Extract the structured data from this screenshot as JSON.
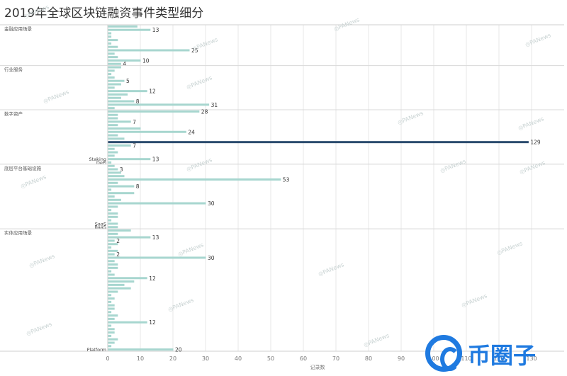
{
  "chart_data": {
    "type": "bar",
    "orientation": "horizontal",
    "title": "2019年全球区块链融资事件类型细分",
    "xlabel": "记录数",
    "xlim": [
      0,
      140
    ],
    "xticks": [
      0,
      10,
      20,
      30,
      40,
      50,
      60,
      70,
      80,
      90,
      100,
      110,
      120,
      130
    ],
    "grid": true,
    "bar_color": "#a7d6cf",
    "highlight_color": "#2b4b6e",
    "groups": [
      {
        "name": "金融应用场景",
        "categories": [
          "",
          "",
          "",
          "",
          "",
          "",
          "",
          "",
          "",
          "",
          "",
          ""
        ],
        "values": [
          9,
          13,
          1,
          1,
          3,
          1,
          3,
          25,
          2,
          3,
          10,
          4
        ]
      },
      {
        "name": "行业服务",
        "categories": [
          "",
          "",
          "",
          "",
          "",
          "",
          "",
          "",
          "",
          "",
          "",
          "",
          ""
        ],
        "values": [
          4,
          2,
          1,
          2,
          5,
          4,
          2,
          12,
          6,
          4,
          8,
          31,
          2
        ]
      },
      {
        "name": "数字资产",
        "categories": [
          "",
          "",
          "",
          "",
          "",
          "",
          "",
          "",
          "",
          "",
          "",
          "",
          "",
          "",
          "Staking",
          "DeFi"
        ],
        "values": [
          28,
          3,
          3,
          7,
          3,
          10,
          24,
          3,
          5,
          129,
          7,
          2,
          3,
          2,
          13,
          1
        ]
      },
      {
        "name": "底层平台基础设施",
        "categories": [
          "",
          "",
          "",
          "",
          "",
          "",
          "",
          "",
          "",
          "",
          "",
          "",
          "",
          "",
          "",
          "",
          "",
          "SaaS",
          "BaaS"
        ],
        "values": [
          2,
          3,
          4,
          5,
          53,
          3,
          8,
          1,
          8,
          2,
          4,
          30,
          3,
          1,
          3,
          3,
          1,
          3,
          3
        ]
      },
      {
        "name": "实体应用场景",
        "categories": [
          "",
          "",
          "",
          "",
          "",
          "",
          "",
          "",
          "",
          "",
          "",
          "",
          "",
          "",
          "",
          "",
          "",
          "",
          "",
          "",
          "",
          "",
          "",
          "",
          "",
          "",
          "",
          "",
          "",
          "",
          "",
          "",
          "",
          "",
          "",
          "Platform"
        ],
        "values": [
          7,
          3,
          13,
          2,
          3,
          1,
          3,
          2,
          30,
          2,
          3,
          3,
          1,
          2,
          12,
          8,
          5,
          7,
          3,
          1,
          2,
          1,
          2,
          2,
          1,
          3,
          2,
          12,
          1,
          2,
          2,
          1,
          3,
          2,
          1,
          20
        ]
      }
    ],
    "data_labels": [
      13,
      25,
      10,
      4,
      5,
      12,
      31,
      28,
      24,
      129,
      13,
      53,
      8,
      8,
      30,
      3,
      7,
      13,
      30,
      12,
      7,
      2,
      12,
      2,
      20
    ]
  },
  "watermark": "PANews",
  "logo_text": "币圈子"
}
